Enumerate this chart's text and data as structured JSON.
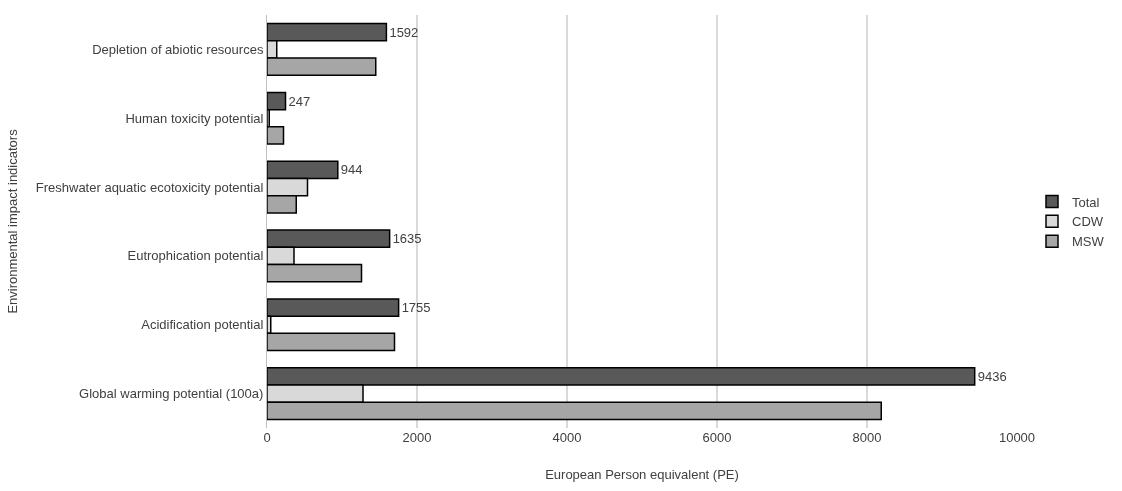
{
  "chart_data": {
    "type": "bar",
    "orientation": "horizontal",
    "xlabel": "European Person equivalent (PE)",
    "ylabel": "Environmental impact indicators",
    "categories": [
      "Depletion of abiotic resources",
      "Human toxicity potential",
      "Freshwater aquatic ecotoxicity potential",
      "Eutrophication potential",
      "Acidification potential",
      "Global warming potential (100a)"
    ],
    "series": [
      {
        "name": "Total",
        "color": "#595959",
        "values": [
          1592,
          247,
          944,
          1635,
          1755,
          9436
        ],
        "value_labels": [
          "1592",
          "247",
          "944",
          "1635",
          "1755",
          "9436"
        ]
      },
      {
        "name": "CDW",
        "color": "#d9d9d9",
        "values": [
          130,
          30,
          540,
          360,
          50,
          1280
        ]
      },
      {
        "name": "MSW",
        "color": "#a6a6a6",
        "values": [
          1450,
          220,
          390,
          1260,
          1700,
          8190
        ]
      }
    ],
    "xlim": [
      0,
      10000
    ],
    "xticks": [
      0,
      2000,
      4000,
      6000,
      8000,
      10000
    ],
    "grid": "x",
    "legend": "right"
  }
}
